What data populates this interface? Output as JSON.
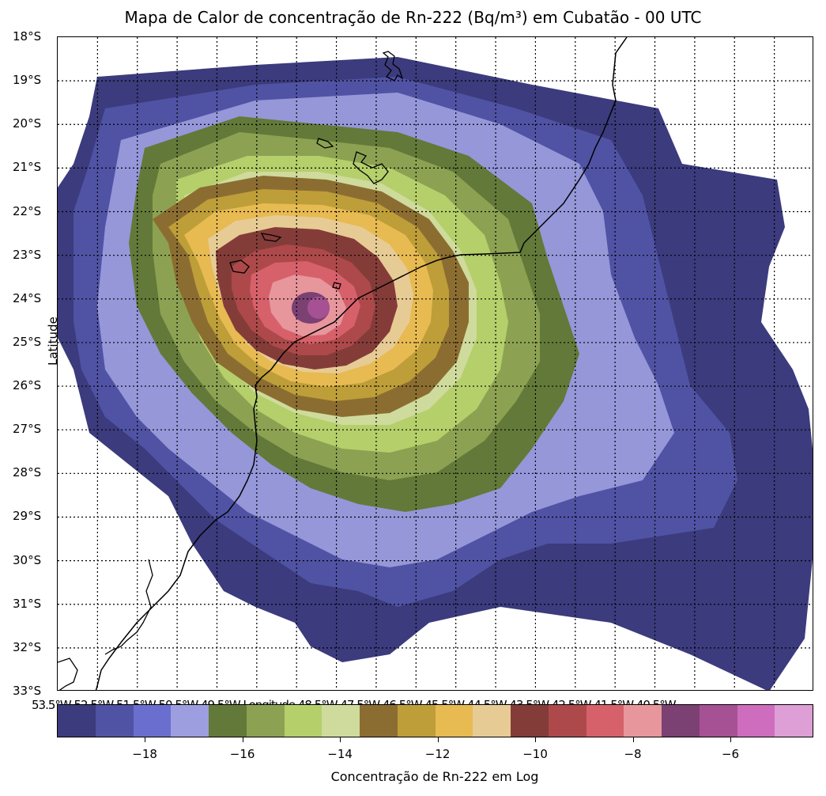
{
  "title": "Mapa de Calor de concentração de Rn-222 (Bq/m³) em Cubatão - 00 UTC",
  "y_axis": {
    "title": "Latitude",
    "ticks": [
      "18°S",
      "19°S",
      "20°S",
      "21°S",
      "22°S",
      "23°S",
      "24°S",
      "25°S",
      "26°S",
      "27°S",
      "28°S",
      "29°S",
      "30°S",
      "31°S",
      "32°S",
      "33°S"
    ]
  },
  "x_axis_overlap_text": "53.5°W 52.5°W 51.5°W 50.5°W 49.5°W Longitude 48.5°W 47.5°W 46.5°W 45.5°W 44.5°W 43.5°W 42.5°W 41.5°W 40.5°W",
  "colorbar": {
    "label": "Concentração de Rn-222 em Log",
    "ticks": [
      "−18",
      "−16",
      "−14",
      "−12",
      "−10",
      "−8",
      "−6"
    ],
    "tick_values": [
      -18,
      -16,
      -14,
      -12,
      -10,
      -8,
      -6
    ],
    "range": [
      -19.8,
      -4.3
    ],
    "colors": [
      "#3b3b7d",
      "#5053a4",
      "#6a6fcf",
      "#9c9edf",
      "#637939",
      "#8ca252",
      "#b5cf6b",
      "#cedb9c",
      "#8c6d31",
      "#bd9e39",
      "#e7ba52",
      "#e7cb94",
      "#843c39",
      "#ad494a",
      "#d6616b",
      "#e7969c",
      "#7b4173",
      "#a55194",
      "#ce6dbd",
      "#de9ed6"
    ]
  },
  "map": {
    "lat_range": [
      -33,
      -18
    ],
    "lon_range": [
      -53.5,
      -40.5
    ],
    "source_center": {
      "lat": -24.3,
      "lon": -46.4
    },
    "coastline_color": "#000000"
  }
}
